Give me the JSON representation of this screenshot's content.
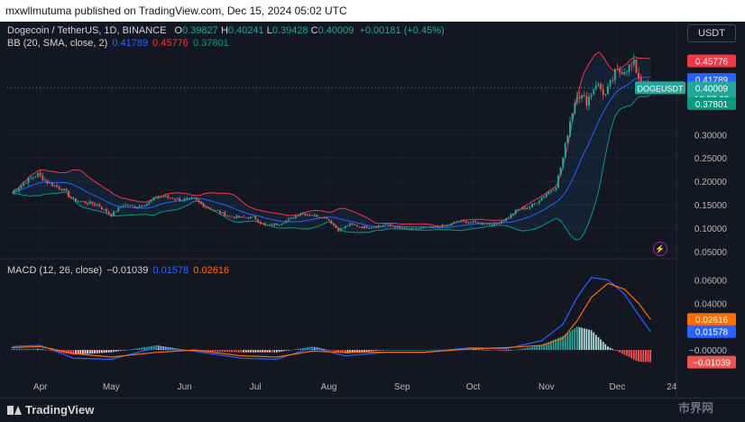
{
  "header": {
    "publisher_line": "mxwllmutuma published on TradingView.com, Dec 15, 2024 05:02 UTC"
  },
  "legend": {
    "symbol": "Dogecoin / TetherUS, 1D, BINANCE",
    "o_label": "O",
    "o": "0.39827",
    "h_label": "H",
    "h": "0.40241",
    "l_label": "L",
    "l": "0.39428",
    "c_label": "C",
    "c": "0.40009",
    "change": "+0.00181 (+0.45%)",
    "bb_label": "BB (20, SMA, close, 2)",
    "bb_mid": "0.41789",
    "bb_upper": "0.45776",
    "bb_lower": "0.37801",
    "macd_label": "MACD (12, 26, close)",
    "macd_hist": "−0.01039",
    "macd_line": "0.01578",
    "macd_signal": "0.02616"
  },
  "currency_button": "USDT",
  "price_tags": {
    "upper": "0.45776",
    "mid": "0.41789",
    "last": "0.40009",
    "symbol": "DOGEUSDT",
    "countdown": "18:57:39",
    "lower": "0.37801"
  },
  "macd_tags": {
    "signal": "0.02616",
    "line": "0.01578",
    "hist": "−0.01039"
  },
  "branding": {
    "logo_text": "TradingView",
    "watermark": "市界网"
  },
  "colors": {
    "background": "#131722",
    "up": "#26a69a",
    "down": "#ef5350",
    "bb_upper": "#f23645",
    "bb_mid": "#2962ff",
    "bb_lower": "#089981",
    "macd": "#2962ff",
    "signal": "#ff6d00"
  },
  "chart_data": [
    {
      "type": "candlestick",
      "title": "Dogecoin / TetherUS, 1D, BINANCE",
      "x_ticks": [
        "Apr",
        "May",
        "Jun",
        "Jul",
        "Aug",
        "Sep",
        "Oct",
        "Nov",
        "Dec",
        "24"
      ],
      "y_ticks": [
        "0.30000",
        "0.25000",
        "0.20000",
        "0.15000",
        "0.10000",
        "0.05000"
      ],
      "ylim": [
        0.04,
        0.48
      ],
      "close_series": [
        {
          "date": "2024-03-20",
          "close": 0.175
        },
        {
          "date": "2024-03-26",
          "close": 0.2
        },
        {
          "date": "2024-03-31",
          "close": 0.215
        },
        {
          "date": "2024-04-05",
          "close": 0.195
        },
        {
          "date": "2024-04-10",
          "close": 0.185
        },
        {
          "date": "2024-04-15",
          "close": 0.16
        },
        {
          "date": "2024-04-20",
          "close": 0.155
        },
        {
          "date": "2024-04-25",
          "close": 0.15
        },
        {
          "date": "2024-05-01",
          "close": 0.128
        },
        {
          "date": "2024-05-06",
          "close": 0.15
        },
        {
          "date": "2024-05-11",
          "close": 0.145
        },
        {
          "date": "2024-05-16",
          "close": 0.152
        },
        {
          "date": "2024-05-21",
          "close": 0.168
        },
        {
          "date": "2024-05-26",
          "close": 0.165
        },
        {
          "date": "2024-05-31",
          "close": 0.16
        },
        {
          "date": "2024-06-05",
          "close": 0.162
        },
        {
          "date": "2024-06-10",
          "close": 0.145
        },
        {
          "date": "2024-06-15",
          "close": 0.135
        },
        {
          "date": "2024-06-20",
          "close": 0.125
        },
        {
          "date": "2024-06-25",
          "close": 0.122
        },
        {
          "date": "2024-06-30",
          "close": 0.123
        },
        {
          "date": "2024-07-05",
          "close": 0.105
        },
        {
          "date": "2024-07-10",
          "close": 0.108
        },
        {
          "date": "2024-07-15",
          "close": 0.118
        },
        {
          "date": "2024-07-20",
          "close": 0.132
        },
        {
          "date": "2024-07-25",
          "close": 0.128
        },
        {
          "date": "2024-07-31",
          "close": 0.122
        },
        {
          "date": "2024-08-05",
          "close": 0.095
        },
        {
          "date": "2024-08-10",
          "close": 0.108
        },
        {
          "date": "2024-08-15",
          "close": 0.102
        },
        {
          "date": "2024-08-20",
          "close": 0.103
        },
        {
          "date": "2024-08-25",
          "close": 0.108
        },
        {
          "date": "2024-08-31",
          "close": 0.1
        },
        {
          "date": "2024-09-05",
          "close": 0.097
        },
        {
          "date": "2024-09-10",
          "close": 0.1
        },
        {
          "date": "2024-09-15",
          "close": 0.102
        },
        {
          "date": "2024-09-20",
          "close": 0.105
        },
        {
          "date": "2024-09-25",
          "close": 0.115
        },
        {
          "date": "2024-09-30",
          "close": 0.112
        },
        {
          "date": "2024-10-05",
          "close": 0.11
        },
        {
          "date": "2024-10-10",
          "close": 0.108
        },
        {
          "date": "2024-10-15",
          "close": 0.12
        },
        {
          "date": "2024-10-20",
          "close": 0.14
        },
        {
          "date": "2024-10-25",
          "close": 0.145
        },
        {
          "date": "2024-10-30",
          "close": 0.165
        },
        {
          "date": "2024-11-05",
          "close": 0.19
        },
        {
          "date": "2024-11-08",
          "close": 0.25
        },
        {
          "date": "2024-11-11",
          "close": 0.33
        },
        {
          "date": "2024-11-14",
          "close": 0.39
        },
        {
          "date": "2024-11-18",
          "close": 0.37
        },
        {
          "date": "2024-11-22",
          "close": 0.41
        },
        {
          "date": "2024-11-26",
          "close": 0.385
        },
        {
          "date": "2024-11-30",
          "close": 0.43
        },
        {
          "date": "2024-12-04",
          "close": 0.44
        },
        {
          "date": "2024-12-08",
          "close": 0.45
        },
        {
          "date": "2024-12-11",
          "close": 0.41
        },
        {
          "date": "2024-12-15",
          "close": 0.40009
        }
      ]
    },
    {
      "type": "macd",
      "title": "MACD (12, 26, close)",
      "y_ticks": [
        "0.06000",
        "0.04000",
        "0.02000",
        "−0.00000"
      ],
      "ylim": [
        -0.013,
        0.068
      ],
      "series_points": [
        {
          "date": "2024-03-20",
          "macd": 0.003,
          "signal": 0.002
        },
        {
          "date": "2024-04-01",
          "macd": 0.004,
          "signal": 0.003
        },
        {
          "date": "2024-04-15",
          "macd": -0.007,
          "signal": -0.003
        },
        {
          "date": "2024-05-01",
          "macd": -0.008,
          "signal": -0.006
        },
        {
          "date": "2024-05-20",
          "macd": 0.002,
          "signal": -0.002
        },
        {
          "date": "2024-06-05",
          "macd": -0.001,
          "signal": 0.0
        },
        {
          "date": "2024-06-25",
          "macd": -0.007,
          "signal": -0.005
        },
        {
          "date": "2024-07-10",
          "macd": -0.008,
          "signal": -0.006
        },
        {
          "date": "2024-07-25",
          "macd": 0.002,
          "signal": -0.001
        },
        {
          "date": "2024-08-08",
          "macd": -0.005,
          "signal": -0.002
        },
        {
          "date": "2024-08-25",
          "macd": -0.002,
          "signal": -0.002
        },
        {
          "date": "2024-09-10",
          "macd": -0.002,
          "signal": -0.002
        },
        {
          "date": "2024-09-30",
          "macd": 0.002,
          "signal": 0.001
        },
        {
          "date": "2024-10-15",
          "macd": 0.001,
          "signal": 0.002
        },
        {
          "date": "2024-10-30",
          "macd": 0.008,
          "signal": 0.004
        },
        {
          "date": "2024-11-08",
          "macd": 0.022,
          "signal": 0.01
        },
        {
          "date": "2024-11-14",
          "macd": 0.045,
          "signal": 0.025
        },
        {
          "date": "2024-11-20",
          "macd": 0.062,
          "signal": 0.045
        },
        {
          "date": "2024-11-27",
          "macd": 0.06,
          "signal": 0.057
        },
        {
          "date": "2024-12-04",
          "macd": 0.048,
          "signal": 0.052
        },
        {
          "date": "2024-12-10",
          "macd": 0.03,
          "signal": 0.04
        },
        {
          "date": "2024-12-15",
          "macd": 0.01578,
          "signal": 0.02616
        }
      ]
    }
  ]
}
